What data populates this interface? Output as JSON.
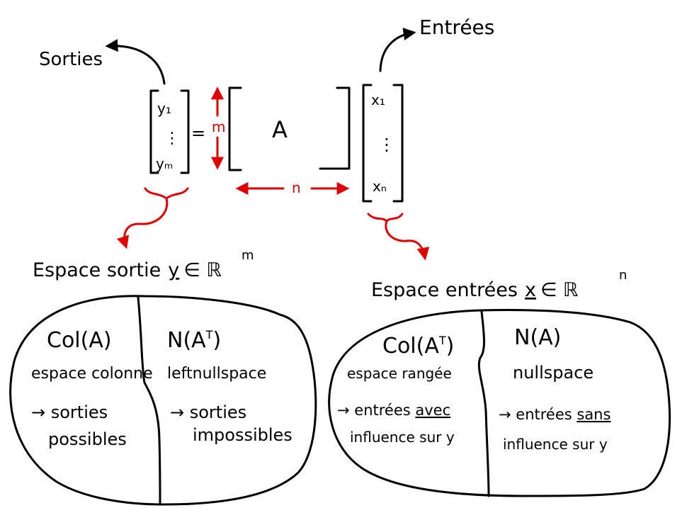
{
  "colors": {
    "ink": "#000000",
    "accent": "#e00000"
  },
  "labels": {
    "outputs": "Sorties",
    "inputs": "Entrées"
  },
  "equation": {
    "y_top": "y₁",
    "y_dots": "⋮",
    "y_bottom": "yₘ",
    "equals": "=",
    "m_label": "m",
    "matrix": "A",
    "n_label": "n",
    "x_top": "x₁",
    "x_dots": "⋮",
    "x_bottom": "xₙ"
  },
  "output_space": {
    "title_prefix": "Espace sortie",
    "title_var": "y",
    "title_set": "∈ ℝ",
    "title_exp": "m",
    "left": {
      "heading": "Col(A)",
      "name": "espace colonne",
      "desc_line1": "→ sorties",
      "desc_line2": "possibles"
    },
    "right": {
      "heading": "N(A",
      "heading_sup": "T",
      "heading_close": ")",
      "name": "leftnullspace",
      "desc_line1": "→ sorties",
      "desc_line2": "impossibles"
    }
  },
  "input_space": {
    "title_prefix": "Espace entrées",
    "title_var": "x",
    "title_set": "∈ ℝ",
    "title_exp": "n",
    "left": {
      "heading": "Col(A",
      "heading_sup": "T",
      "heading_close": ")",
      "name": "espace rangée",
      "desc_line1_a": "→ entrées ",
      "desc_line1_b": "avec",
      "desc_line2": "influence sur y"
    },
    "right": {
      "heading": "N(A)",
      "name": "nullspace",
      "desc_line1_a": "→ entrées ",
      "desc_line1_b": "sans",
      "desc_line2": "influence sur y"
    }
  }
}
